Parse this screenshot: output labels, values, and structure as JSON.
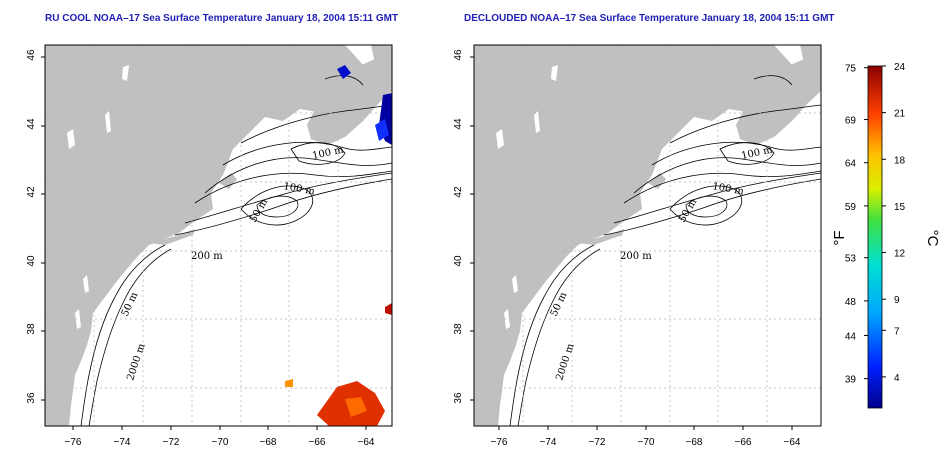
{
  "panels": [
    {
      "title": "RU COOL NOAA–17 Sea Surface Temperature January 18, 2004 15:11 GMT",
      "lat_labels": [
        "36",
        "38",
        "40",
        "42",
        "44",
        "46"
      ],
      "lon_labels": [
        "−76",
        "−74",
        "−72",
        "−70",
        "−68",
        "−66",
        "−64"
      ],
      "contour_labels": [
        "100 m",
        "100 m",
        "50 m",
        "200 m",
        "50 m",
        "2000 m"
      ]
    },
    {
      "title": "DECLOUDED NOAA–17 Sea Surface Temperature January 18, 2004 15:11 GMT",
      "lat_labels": [
        "36",
        "38",
        "40",
        "42",
        "44",
        "46"
      ],
      "lon_labels": [
        "−76",
        "−74",
        "−72",
        "−70",
        "−68",
        "−66",
        "−64"
      ],
      "contour_labels": [
        "100 m",
        "100 m",
        "50 m",
        "200 m",
        "50 m",
        "2000 m"
      ]
    }
  ],
  "colorbar": {
    "fahrenheit_label": "°F",
    "celsius_label": "°C",
    "fahrenheit_ticks": [
      "75",
      "69",
      "64",
      "59",
      "53",
      "48",
      "44",
      "39"
    ],
    "celsius_ticks": [
      "24",
      "21",
      "18",
      "15",
      "12",
      "9",
      "7",
      "4"
    ],
    "min_c": 2,
    "max_c": 24
  },
  "colors": {
    "title": "#1f1fb4",
    "land": "#c0c0c0",
    "ocean": "#ffffff",
    "grid": "#b4b4b4"
  }
}
